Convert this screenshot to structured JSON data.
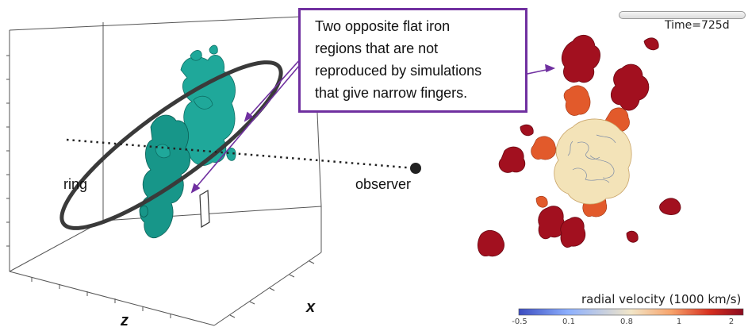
{
  "callout": {
    "lines": [
      "Two opposite flat iron",
      "regions that are not",
      "reproduced by simulations",
      "that give narrow fingers."
    ],
    "border_color": "#7030a0"
  },
  "left_panel": {
    "labels": {
      "ring": "ring",
      "observer": "observer",
      "z_axis": "z",
      "x_axis": "x"
    },
    "iron_color": "#1fa89a"
  },
  "right_panel": {
    "time_label": "Time=725d",
    "colorbar": {
      "title": "radial velocity (1000 km/s)",
      "ticks": [
        "-0.5",
        "0.1",
        "0.8",
        "1",
        "2"
      ],
      "colors": [
        "#3b4cc0",
        "#8db0fe",
        "#f2e6c8",
        "#f7a36b",
        "#d62f1f",
        "#8b0b1f"
      ]
    }
  }
}
